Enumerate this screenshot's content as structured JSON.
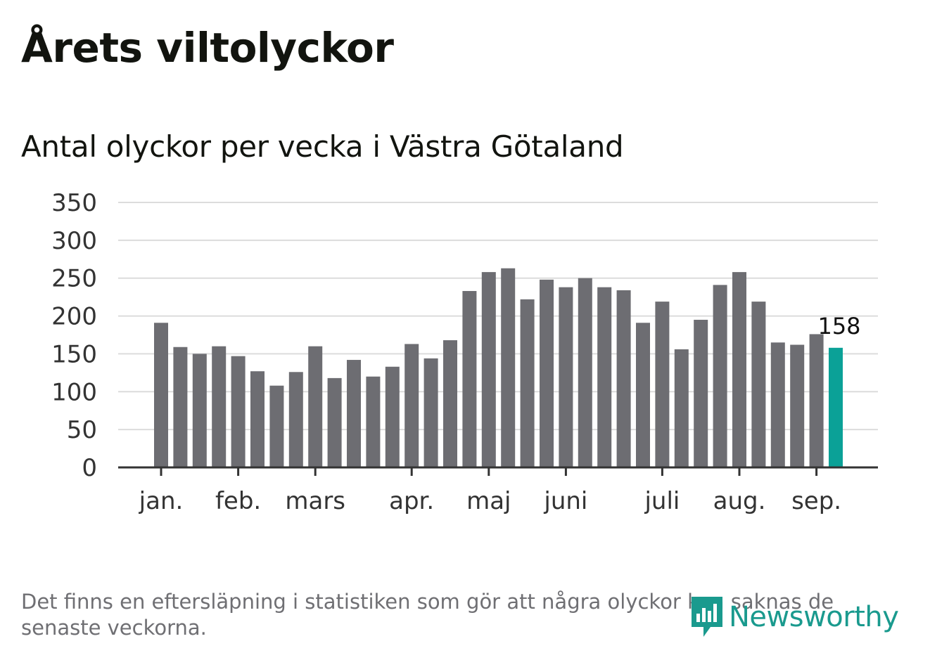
{
  "title": "Årets viltolyckor",
  "subtitle": "Antal olyckor per vecka i Västra Götaland",
  "footnote": "Det finns en eftersläpning i statistiken som gör att några olyckor kan saknas de senaste veckorna.",
  "logo": {
    "text": "Newsworthy",
    "icon": "newsworthy-logo-icon"
  },
  "colors": {
    "bar": "#6d6d72",
    "highlight": "#0ba197",
    "grid": "#dcdcdc",
    "axis": "#333333",
    "tick_text": "#333333",
    "logo": "#1a9a8e"
  },
  "chart_data": {
    "type": "bar",
    "title": "Antal olyckor per vecka i Västra Götaland",
    "ylim": [
      0,
      350
    ],
    "yticks": [
      0,
      50,
      100,
      150,
      200,
      250,
      300,
      350
    ],
    "grid": true,
    "values": [
      191,
      159,
      150,
      160,
      147,
      127,
      108,
      126,
      160,
      118,
      142,
      120,
      133,
      163,
      144,
      168,
      233,
      258,
      263,
      222,
      248,
      238,
      250,
      238,
      234,
      191,
      219,
      156,
      195,
      241,
      258,
      219,
      165,
      162,
      176,
      158
    ],
    "highlight_index": 35,
    "highlight_label": "158",
    "month_labels": [
      {
        "label": "jan.",
        "week": 0
      },
      {
        "label": "feb.",
        "week": 4
      },
      {
        "label": "mars",
        "week": 8
      },
      {
        "label": "apr.",
        "week": 13
      },
      {
        "label": "maj",
        "week": 17
      },
      {
        "label": "juni",
        "week": 21
      },
      {
        "label": "juli",
        "week": 26
      },
      {
        "label": "aug.",
        "week": 30
      },
      {
        "label": "sep.",
        "week": 34
      }
    ]
  }
}
